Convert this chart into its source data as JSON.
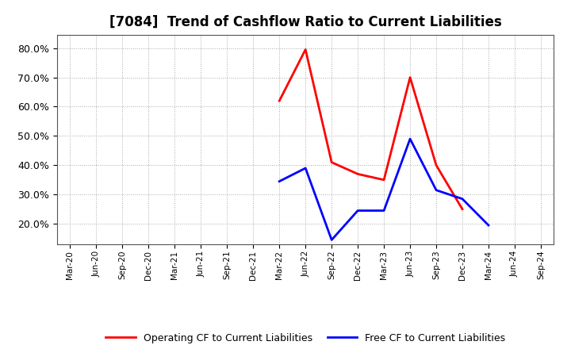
{
  "title": "[7084]  Trend of Cashflow Ratio to Current Liabilities",
  "x_labels": [
    "Mar-20",
    "Jun-20",
    "Sep-20",
    "Dec-20",
    "Mar-21",
    "Jun-21",
    "Sep-21",
    "Dec-21",
    "Mar-22",
    "Jun-22",
    "Sep-22",
    "Dec-22",
    "Mar-23",
    "Jun-23",
    "Sep-23",
    "Dec-23",
    "Mar-24",
    "Jun-24",
    "Sep-24"
  ],
  "operating_cf": {
    "x_indices": [
      8,
      9,
      10,
      11,
      12,
      13,
      14,
      15,
      16
    ],
    "y_values": [
      0.62,
      0.795,
      0.41,
      0.37,
      0.35,
      0.7,
      0.4,
      0.25,
      null
    ],
    "color": "#FF0000",
    "label": "Operating CF to Current Liabilities"
  },
  "free_cf": {
    "x_indices": [
      8,
      9,
      10,
      11,
      12,
      13,
      14,
      15,
      16
    ],
    "y_values": [
      0.345,
      0.39,
      0.145,
      0.245,
      0.245,
      0.49,
      0.315,
      0.285,
      0.195
    ],
    "color": "#0000FF",
    "label": "Free CF to Current Liabilities"
  },
  "ylim": [
    0.13,
    0.845
  ],
  "yticks": [
    0.2,
    0.3,
    0.4,
    0.5,
    0.6,
    0.7,
    0.8
  ],
  "background_color": "#FFFFFF",
  "grid_color": "#AAAAAA",
  "title_fontsize": 12,
  "legend_fontsize": 9
}
